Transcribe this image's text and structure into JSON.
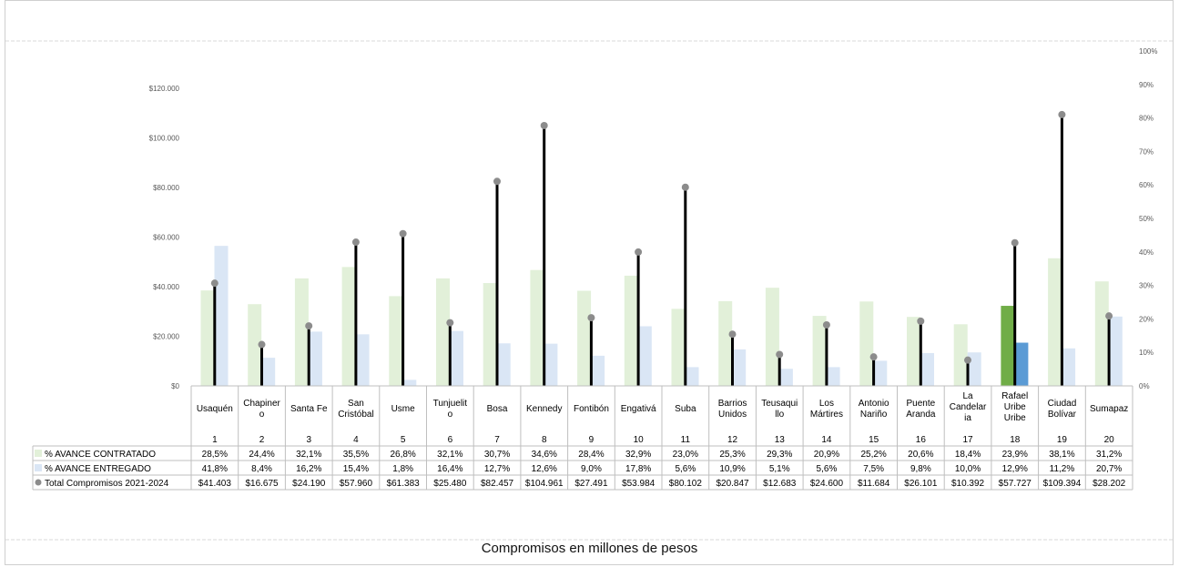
{
  "chart_data": {
    "type": "bar",
    "caption": "Compromisos en millones de pesos",
    "categories": [
      "Usaquén",
      "Chapinero",
      "Santa Fe",
      "San Cristóbal",
      "Usme",
      "Tunjuelito",
      "Bosa",
      "Kennedy",
      "Fontibón",
      "Engativá",
      "Suba",
      "Barrios Unidos",
      "Teusaquillo",
      "Los Mártires",
      "Antonio Nariño",
      "Puente Aranda",
      "La Candelaria",
      "Rafael Uribe Uribe",
      "Ciudad Bolívar",
      "Sumapaz"
    ],
    "category_display": [
      "Usaquén",
      "Chapiner\no",
      "Santa Fe",
      "San\nCristóbal",
      "Usme",
      "Tunjuelit\no",
      "Bosa",
      "Kennedy",
      "Fontibón",
      "Engativá",
      "Suba",
      "Barrios\nUnidos",
      "Teusaqui\nllo",
      "Los\nMártires",
      "Antonio\nNariño",
      "Puente\nAranda",
      "La\nCandelar\nia",
      "Rafael\nUribe\nUribe",
      "Ciudad\nBolívar",
      "Sumapaz"
    ],
    "numbers": [
      "1",
      "2",
      "3",
      "4",
      "5",
      "6",
      "7",
      "8",
      "9",
      "10",
      "11",
      "12",
      "13",
      "14",
      "15",
      "16",
      "17",
      "18",
      "19",
      "20"
    ],
    "highlight_index": 17,
    "left_axis": {
      "ticks": [
        "$0",
        "$20.000",
        "$40.000",
        "$60.000",
        "$80.000",
        "$100.000",
        "$120.000"
      ],
      "range": [
        0,
        120000
      ]
    },
    "right_axis": {
      "ticks": [
        "0%",
        "10%",
        "20%",
        "30%",
        "40%",
        "50%",
        "60%",
        "70%",
        "80%",
        "90%",
        "100%"
      ],
      "range": [
        0,
        100
      ]
    },
    "series": [
      {
        "name": "% AVANCE CONTRATADO",
        "axis": "right",
        "kind": "bar",
        "values": [
          28.5,
          24.4,
          32.1,
          35.5,
          26.8,
          32.1,
          30.7,
          34.6,
          28.4,
          32.9,
          23.0,
          25.3,
          29.3,
          20.9,
          25.2,
          20.6,
          18.4,
          23.9,
          38.1,
          31.2
        ],
        "labels": [
          "28,5%",
          "24,4%",
          "32,1%",
          "35,5%",
          "26,8%",
          "32,1%",
          "30,7%",
          "34,6%",
          "28,4%",
          "32,9%",
          "23,0%",
          "25,3%",
          "29,3%",
          "20,9%",
          "25,2%",
          "20,6%",
          "18,4%",
          "23,9%",
          "38,1%",
          "31,2%"
        ]
      },
      {
        "name": "% AVANCE ENTREGADO",
        "axis": "right",
        "kind": "bar",
        "values": [
          41.8,
          8.4,
          16.2,
          15.4,
          1.8,
          16.4,
          12.7,
          12.6,
          9.0,
          17.8,
          5.6,
          10.9,
          5.1,
          5.6,
          7.5,
          9.8,
          10.0,
          12.9,
          11.2,
          20.7
        ],
        "labels": [
          "41,8%",
          "8,4%",
          "16,2%",
          "15,4%",
          "1,8%",
          "16,4%",
          "12,7%",
          "12,6%",
          "9,0%",
          "17,8%",
          "5,6%",
          "10,9%",
          "5,1%",
          "5,6%",
          "7,5%",
          "9,8%",
          "10,0%",
          "12,9%",
          "11,2%",
          "20,7%"
        ]
      },
      {
        "name": "Total Compromisos 2021-2024",
        "axis": "left",
        "kind": "lollipop",
        "values": [
          41403,
          16675,
          24190,
          57960,
          61383,
          25480,
          82457,
          104961,
          27491,
          53984,
          80102,
          20847,
          12683,
          24600,
          11684,
          26101,
          10392,
          57727,
          109394,
          28202
        ],
        "labels": [
          "$41.403",
          "$16.675",
          "$24.190",
          "$57.960",
          "$61.383",
          "$25.480",
          "$82.457",
          "$104.961",
          "$27.491",
          "$53.984",
          "$80.102",
          "$20.847",
          "$12.683",
          "$24.600",
          "$11.684",
          "$26.101",
          "$10.392",
          "$57.727",
          "$109.394",
          "$28.202"
        ]
      }
    ],
    "colors": {
      "contratado": "#e2f0d9",
      "entregado": "#dae6f5",
      "contratado_highlight": "#70ad47",
      "entregado_highlight": "#5b9bd5",
      "lollipop_line": "#000000",
      "lollipop_dot": "#8c8c8c",
      "legend_contratado": "#e2f0d9",
      "legend_entregado": "#dae6f5",
      "legend_dot": "#8c8c8c"
    }
  }
}
